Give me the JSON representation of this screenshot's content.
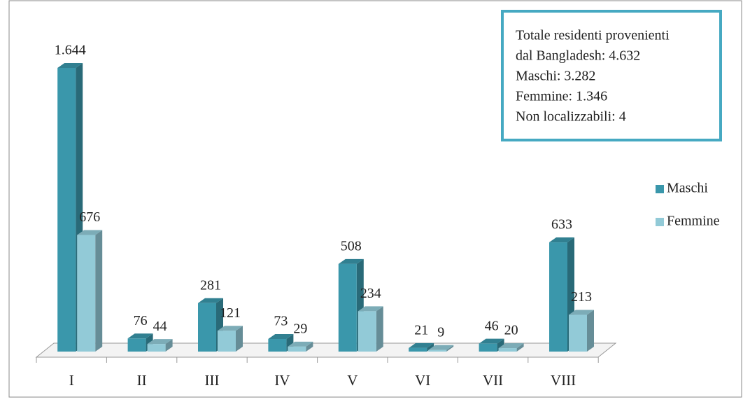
{
  "chart_data": {
    "type": "bar3d",
    "categories": [
      "I",
      "II",
      "III",
      "IV",
      "V",
      "VI",
      "VII",
      "VIII"
    ],
    "series": [
      {
        "name": "Maschi",
        "color": "#3a97ab",
        "values": [
          1644,
          76,
          281,
          73,
          508,
          21,
          46,
          633
        ],
        "value_labels": [
          "1.644",
          "76",
          "281",
          "73",
          "508",
          "21",
          "46",
          "633"
        ]
      },
      {
        "name": "Femmine",
        "color": "#92cad7",
        "values": [
          676,
          44,
          121,
          29,
          234,
          9,
          20,
          213
        ],
        "value_labels": [
          "676",
          "44",
          "121",
          "29",
          "234",
          "9",
          "20",
          "213"
        ]
      }
    ],
    "annotation": [
      "Totale residenti provenienti",
      "dal Bangladesh: 4.632",
      "Maschi: 3.282",
      "Femmine: 1.346",
      "Non localizzabili: 4"
    ],
    "legend": "right"
  }
}
